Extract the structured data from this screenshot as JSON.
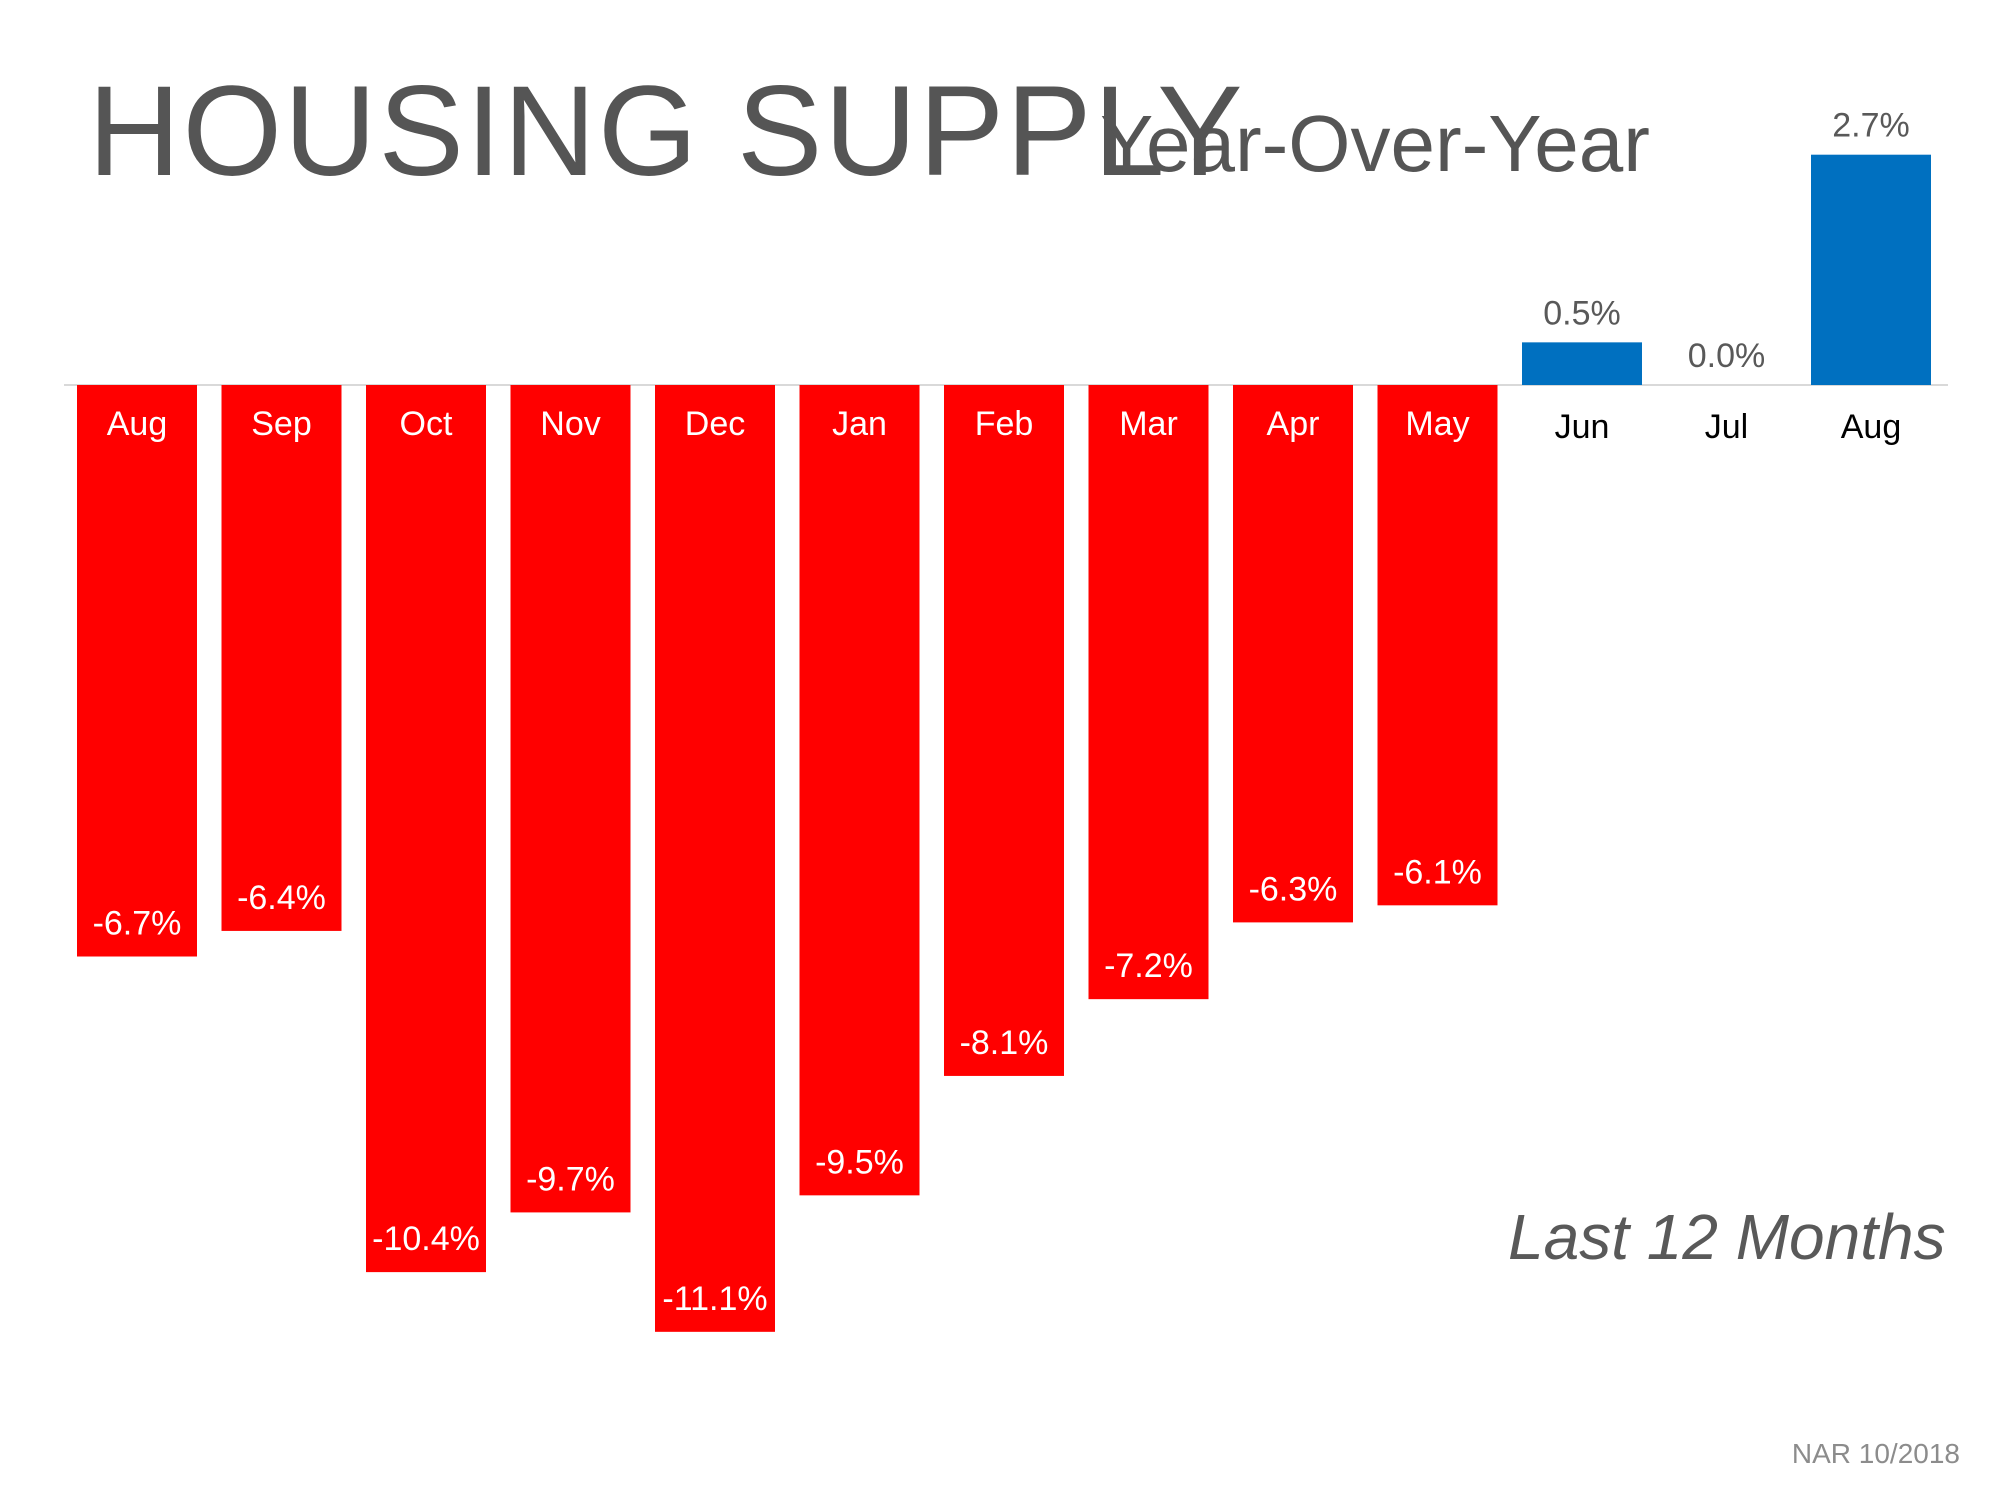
{
  "chart_data": {
    "type": "bar",
    "title": "HOUSING SUPPLY",
    "subtitle": "Year-Over-Year",
    "annotation": "Last 12 Months",
    "source": "NAR 10/2018",
    "categories": [
      "Aug",
      "Sep",
      "Oct",
      "Nov",
      "Dec",
      "Jan",
      "Feb",
      "Mar",
      "Apr",
      "May",
      "Jun",
      "Jul",
      "Aug"
    ],
    "values": [
      -6.7,
      -6.4,
      -10.4,
      -9.7,
      -11.1,
      -9.5,
      -8.1,
      -7.2,
      -6.3,
      -6.1,
      0.5,
      0.0,
      2.7
    ],
    "data_labels": [
      "-6.7%",
      "-6.4%",
      "-10.4%",
      "-9.7%",
      "-11.1%",
      "-9.5%",
      "-8.1%",
      "-7.2%",
      "-6.3%",
      "-6.1%",
      "0.5%",
      "0.0%",
      "2.7%"
    ],
    "ylim": [
      -11.1,
      2.7
    ],
    "colors": {
      "negative": "#ff0000",
      "positive": "#0070c0",
      "axis": "#d9d9d9"
    },
    "grid": false
  }
}
